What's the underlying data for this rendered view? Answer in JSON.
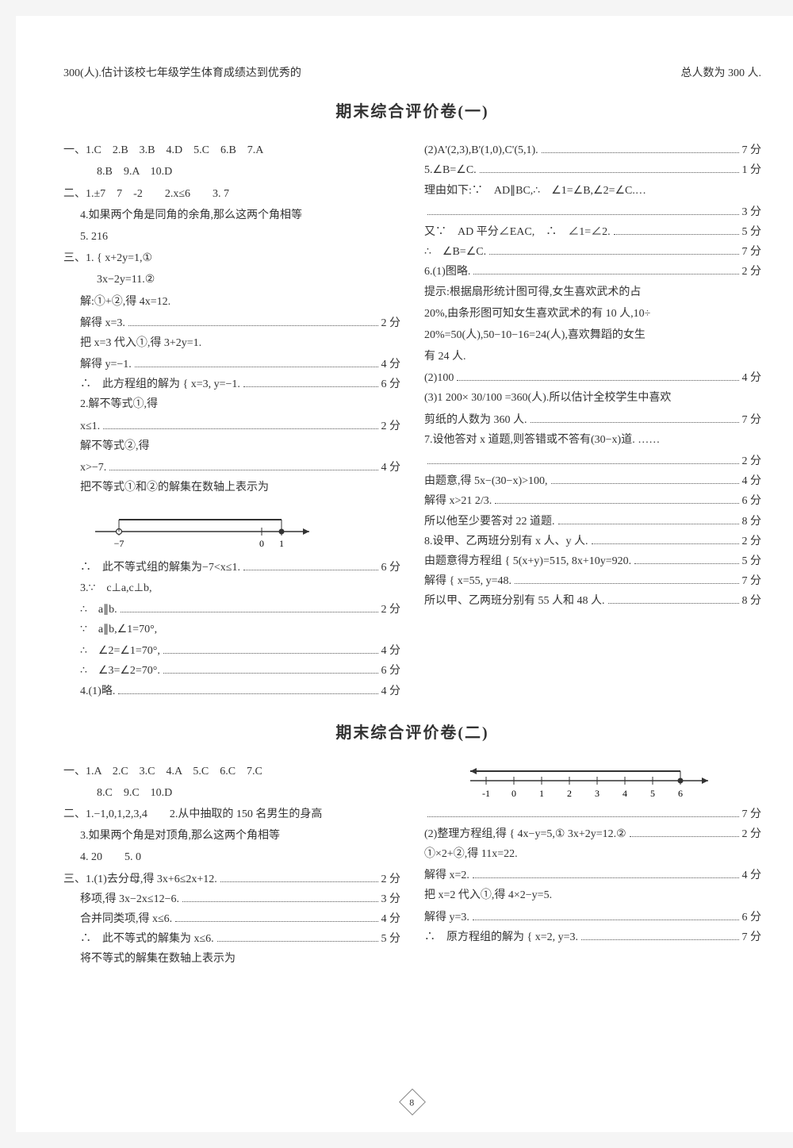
{
  "top": {
    "left": "300(人).估计该校七年级学生体育成绩达到优秀的",
    "right": "总人数为 300 人."
  },
  "exam1": {
    "title": "期末综合评价卷(一)",
    "left": [
      {
        "t": "plain",
        "cls": "",
        "text": "一、1.C　2.B　3.B　4.D　5.C　6.B　7.A"
      },
      {
        "t": "plain",
        "cls": "ind2",
        "text": "8.B　9.A　10.D"
      },
      {
        "t": "plain",
        "cls": "",
        "text": "二、1.±7　7　-2　　2.x≤6　　3. 7"
      },
      {
        "t": "plain",
        "cls": "ind1",
        "text": "4.如果两个角是同角的余角,那么这两个角相等"
      },
      {
        "t": "plain",
        "cls": "ind1",
        "text": "5. 216"
      },
      {
        "t": "plain",
        "cls": "",
        "text": "三、1. { x+2y=1,①"
      },
      {
        "t": "plain",
        "cls": "ind2",
        "text": "  3x−2y=11.②"
      },
      {
        "t": "plain",
        "cls": "ind1",
        "text": "解:①+②,得 4x=12."
      },
      {
        "t": "dot",
        "cls": "ind1",
        "text": "解得 x=3.",
        "score": "2 分"
      },
      {
        "t": "plain",
        "cls": "ind1",
        "text": "把 x=3 代入①,得 3+2y=1."
      },
      {
        "t": "dot",
        "cls": "ind1",
        "text": "解得 y=−1.",
        "score": "4 分"
      },
      {
        "t": "dot",
        "cls": "ind1",
        "text": "∴　此方程组的解为 { x=3, y=−1.",
        "score": "6 分"
      },
      {
        "t": "plain",
        "cls": "ind1",
        "text": "2.解不等式①,得"
      },
      {
        "t": "dot",
        "cls": "ind1",
        "text": "x≤1.",
        "score": "2 分"
      },
      {
        "t": "plain",
        "cls": "ind1",
        "text": "解不等式②,得"
      },
      {
        "t": "dot",
        "cls": "ind1",
        "text": "x>−7.",
        "score": "4 分"
      },
      {
        "t": "plain",
        "cls": "ind1",
        "text": "把不等式①和②的解集在数轴上表示为"
      },
      {
        "t": "diag1"
      },
      {
        "t": "dot",
        "cls": "ind1",
        "text": "∴　此不等式组的解集为−7<x≤1.",
        "score": "6 分"
      },
      {
        "t": "plain",
        "cls": "ind1",
        "text": "3.∵　c⊥a,c⊥b,"
      },
      {
        "t": "dot",
        "cls": "ind1",
        "text": "∴　a∥b.",
        "score": "2 分"
      },
      {
        "t": "plain",
        "cls": "ind1",
        "text": "∵　a∥b,∠1=70°,"
      },
      {
        "t": "dot",
        "cls": "ind1",
        "text": "∴　∠2=∠1=70°,",
        "score": "4 分"
      },
      {
        "t": "dot",
        "cls": "ind1",
        "text": "∴　∠3=∠2=70°.",
        "score": "6 分"
      },
      {
        "t": "dot",
        "cls": "ind1",
        "text": "4.(1)略.",
        "score": "4 分"
      }
    ],
    "right": [
      {
        "t": "dot",
        "cls": "",
        "text": "(2)A'(2,3),B'(1,0),C'(5,1).",
        "score": "7 分"
      },
      {
        "t": "dot",
        "cls": "",
        "text": "5.∠B=∠C.",
        "score": "1 分"
      },
      {
        "t": "plain",
        "cls": "",
        "text": "理由如下:∵　AD∥BC,∴　∠1=∠B,∠2=∠C.…"
      },
      {
        "t": "dot",
        "cls": "",
        "text": "",
        "score": "3 分"
      },
      {
        "t": "dot",
        "cls": "",
        "text": "又∵　AD 平分∠EAC,　∴　∠1=∠2.",
        "score": "5 分"
      },
      {
        "t": "dot",
        "cls": "",
        "text": "∴　∠B=∠C.",
        "score": "7 分"
      },
      {
        "t": "dot",
        "cls": "",
        "text": "6.(1)图略.",
        "score": "2 分"
      },
      {
        "t": "plain",
        "cls": "",
        "text": "提示:根据扇形统计图可得,女生喜欢武术的占"
      },
      {
        "t": "plain",
        "cls": "",
        "text": "20%,由条形图可知女生喜欢武术的有 10 人,10÷"
      },
      {
        "t": "plain",
        "cls": "",
        "text": "20%=50(人),50−10−16=24(人),喜欢舞蹈的女生"
      },
      {
        "t": "plain",
        "cls": "",
        "text": "有 24 人."
      },
      {
        "t": "dot",
        "cls": "",
        "text": "(2)100",
        "score": "4 分"
      },
      {
        "t": "plain",
        "cls": "",
        "text": "(3)1 200× 30/100 =360(人).所以估计全校学生中喜欢"
      },
      {
        "t": "dot",
        "cls": "",
        "text": "剪纸的人数为 360 人.",
        "score": "7 分"
      },
      {
        "t": "plain",
        "cls": "",
        "text": "7.设他答对 x 道题,则答错或不答有(30−x)道. ……"
      },
      {
        "t": "dot",
        "cls": "",
        "text": "",
        "score": "2 分"
      },
      {
        "t": "dot",
        "cls": "",
        "text": "由题意,得 5x−(30−x)>100,",
        "score": "4 分"
      },
      {
        "t": "dot",
        "cls": "",
        "text": "解得 x>21 2/3.",
        "score": "6 分"
      },
      {
        "t": "dot",
        "cls": "",
        "text": "所以他至少要答对 22 道题.",
        "score": "8 分"
      },
      {
        "t": "dot",
        "cls": "",
        "text": "8.设甲、乙两班分别有 x 人、y 人.",
        "score": "2 分"
      },
      {
        "t": "dot",
        "cls": "",
        "text": "由题意得方程组 { 5(x+y)=515, 8x+10y=920.",
        "score": "5 分"
      },
      {
        "t": "dot",
        "cls": "",
        "text": "解得 { x=55, y=48.",
        "score": "7 分"
      },
      {
        "t": "dot",
        "cls": "",
        "text": "所以甲、乙两班分别有 55 人和 48 人.",
        "score": "8 分"
      }
    ]
  },
  "exam2": {
    "title": "期末综合评价卷(二)",
    "left": [
      {
        "t": "plain",
        "cls": "",
        "text": "一、1.A　2.C　3.C　4.A　5.C　6.C　7.C"
      },
      {
        "t": "plain",
        "cls": "ind2",
        "text": "8.C　9.C　10.D"
      },
      {
        "t": "plain",
        "cls": "",
        "text": "二、1.−1,0,1,2,3,4　　2.从中抽取的 150 名男生的身高"
      },
      {
        "t": "plain",
        "cls": "ind1",
        "text": "3.如果两个角是对顶角,那么这两个角相等"
      },
      {
        "t": "plain",
        "cls": "ind1",
        "text": "4. 20　　5. 0"
      },
      {
        "t": "dot",
        "cls": "",
        "text": "三、1.(1)去分母,得 3x+6≤2x+12.",
        "score": "2 分"
      },
      {
        "t": "dot",
        "cls": "ind1",
        "text": "移项,得 3x−2x≤12−6.",
        "score": "3 分"
      },
      {
        "t": "dot",
        "cls": "ind1",
        "text": "合并同类项,得 x≤6.",
        "score": "4 分"
      },
      {
        "t": "dot",
        "cls": "ind1",
        "text": "∴　此不等式的解集为 x≤6.",
        "score": "5 分"
      },
      {
        "t": "plain",
        "cls": "ind1",
        "text": "将不等式的解集在数轴上表示为"
      }
    ],
    "right": [
      {
        "t": "diag2"
      },
      {
        "t": "dotright",
        "score": "7 分"
      },
      {
        "t": "dot",
        "cls": "",
        "text": "(2)整理方程组,得 { 4x−y=5,① 3x+2y=12.②",
        "score": "2 分"
      },
      {
        "t": "plain",
        "cls": "",
        "text": "①×2+②,得 11x=22."
      },
      {
        "t": "dot",
        "cls": "",
        "text": "解得 x=2.",
        "score": "4 分"
      },
      {
        "t": "plain",
        "cls": "",
        "text": "把 x=2 代入①,得 4×2−y=5."
      },
      {
        "t": "dot",
        "cls": "",
        "text": "解得 y=3.",
        "score": "6 分"
      },
      {
        "t": "dot",
        "cls": "",
        "text": "∴　原方程组的解为 { x=2, y=3.",
        "score": "7 分"
      }
    ]
  },
  "diag1": {
    "ticks": [
      -7,
      0,
      1
    ],
    "open_at": "-7",
    "closed_at": "1"
  },
  "diag2": {
    "ticks": [
      -1,
      0,
      1,
      2,
      3,
      4,
      5,
      6
    ]
  },
  "page_number": "8"
}
